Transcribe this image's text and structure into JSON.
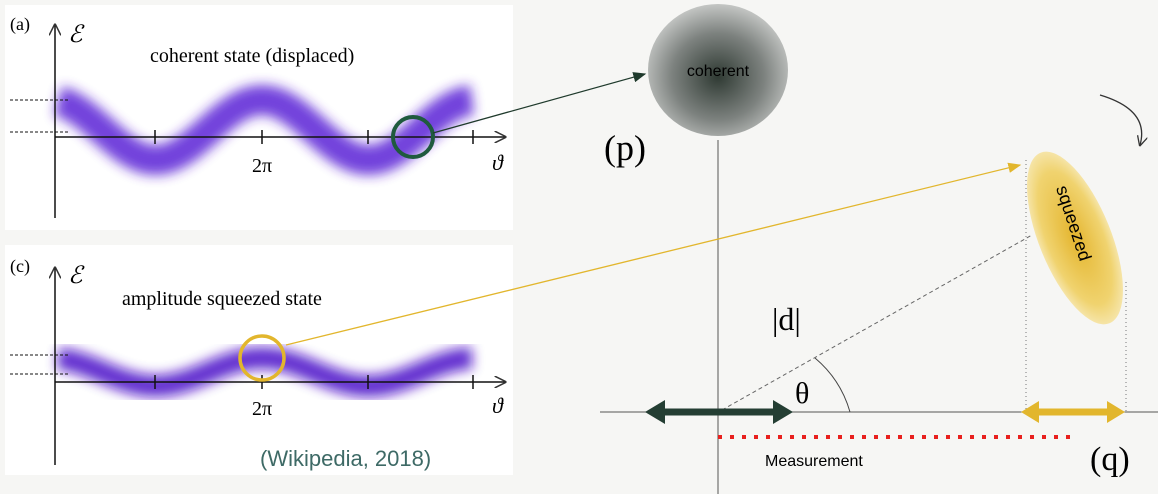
{
  "panels": [
    {
      "label": "(a)",
      "axis_y": "ℰ",
      "title": "coherent state (displaced)",
      "tick": "2π",
      "axis_x": "ϑ"
    },
    {
      "label": "(c)",
      "axis_y": "ℰ",
      "title": "amplitude squeezed state",
      "tick": "2π",
      "axis_x": "ϑ"
    }
  ],
  "citation": "(Wikipedia, 2018)",
  "phase_space": {
    "coherent": "coherent",
    "p_axis": "(p)",
    "squeezed": "squeezed",
    "magnitude": "|d|",
    "angle": "θ",
    "measurement": "Measurement",
    "q_axis": "(q)"
  }
}
